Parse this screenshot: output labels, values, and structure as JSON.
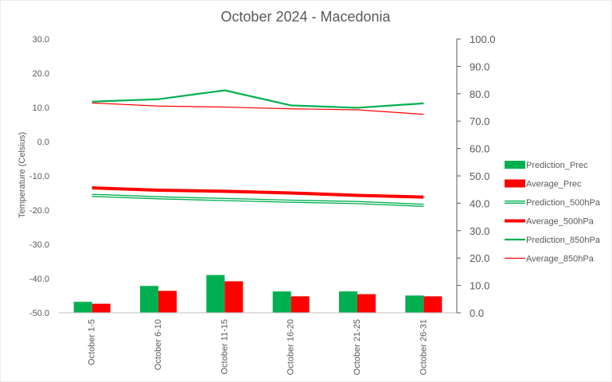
{
  "chart_data": {
    "type": "bar",
    "title": "October 2024 - Macedonia",
    "ylabel": "Temperature  (Celsius)",
    "y2label": "",
    "ylim": [
      -50,
      30
    ],
    "y2lim": [
      0,
      100
    ],
    "ytick_labels": [
      "30.0",
      "20.0",
      "10.0",
      "0.0",
      "-10.0",
      "-20.0",
      "-30.0",
      "-40.0",
      "-50.0"
    ],
    "y2tick_labels": [
      "100.0",
      "90.0",
      "80.0",
      "70.0",
      "60.0",
      "50.0",
      "40.0",
      "30.0",
      "20.0",
      "10.0",
      "0.0"
    ],
    "categories": [
      "October 1-5",
      "October 6-10",
      "October 11-15",
      "October 16-20",
      "October 21-25",
      "October 26-31"
    ],
    "bar_series": [
      {
        "name": "Prediction_Prec",
        "axis": "right",
        "color": "#00b050",
        "values": [
          4.0,
          9.8,
          13.8,
          7.8,
          7.8,
          6.3
        ]
      },
      {
        "name": "Average_Prec",
        "axis": "right",
        "color": "#ff0000",
        "values": [
          3.3,
          8.0,
          11.5,
          6.0,
          6.8,
          6.0
        ]
      }
    ],
    "line_series": [
      {
        "name": "Prediction_500hPa",
        "axis": "left",
        "color": "#00b050",
        "style": "double",
        "values": [
          -15.7,
          -16.4,
          -16.9,
          -17.4,
          -17.8,
          -18.6
        ]
      },
      {
        "name": "Average_500hPa",
        "axis": "left",
        "color": "#ff0000",
        "style": "thick",
        "values": [
          -13.5,
          -14.2,
          -14.5,
          -15.0,
          -15.7,
          -16.2
        ]
      },
      {
        "name": "Prediction_850hPa",
        "axis": "left",
        "color": "#00b050",
        "style": "normal",
        "values": [
          11.7,
          12.4,
          15.0,
          10.6,
          9.9,
          11.2
        ]
      },
      {
        "name": "Average_850hPa",
        "axis": "left",
        "color": "#ff0000",
        "style": "thin",
        "values": [
          11.3,
          10.4,
          10.1,
          9.6,
          9.3,
          8.0
        ]
      }
    ],
    "legend": [
      "Prediction_Prec",
      "Average_Prec",
      "Prediction_500hPa",
      "Average_500hPa",
      "Prediction_850hPa",
      "Average_850hPa"
    ],
    "legend_position": "right",
    "grid": false
  }
}
